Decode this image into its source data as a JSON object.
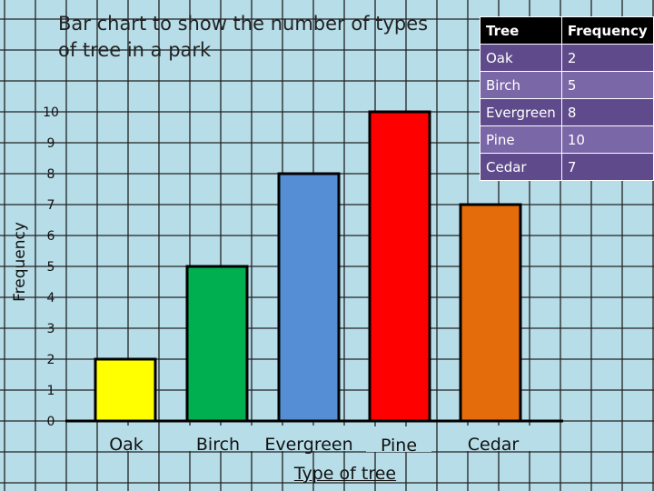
{
  "chart_data": {
    "type": "bar",
    "title": "Bar chart to show the number of types of tree in a park",
    "xlabel": "Type of tree",
    "ylabel": "Frequency",
    "categories": [
      "Oak",
      "Birch",
      "Evergreen",
      "Pine",
      "Cedar"
    ],
    "values": [
      2,
      5,
      8,
      10,
      7
    ],
    "colors": [
      "#ffff00",
      "#00b050",
      "#558ed5",
      "#ff0000",
      "#e46c0a"
    ],
    "ylim": [
      0,
      10
    ],
    "yticks": [
      0,
      1,
      2,
      3,
      4,
      5,
      6,
      7,
      8,
      9,
      10
    ],
    "grid": true
  },
  "table": {
    "headers": [
      "Tree",
      "Frequency"
    ],
    "rows": [
      [
        "Oak",
        "2"
      ],
      [
        "Birch",
        "5"
      ],
      [
        "Evergreen",
        "8"
      ],
      [
        "Pine",
        "10"
      ],
      [
        "Cedar",
        "7"
      ]
    ]
  }
}
